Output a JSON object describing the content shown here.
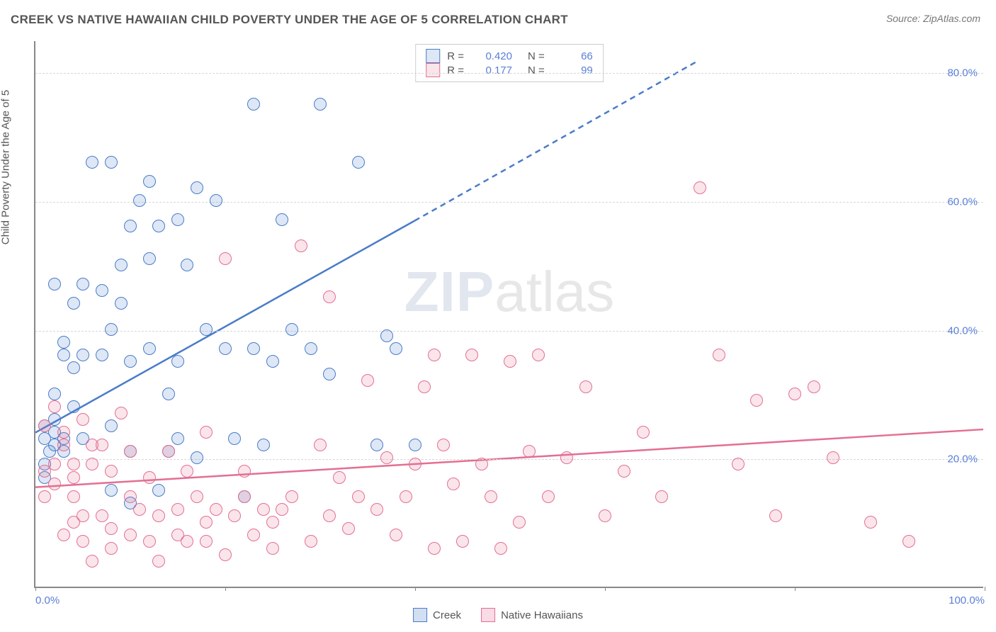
{
  "title": "CREEK VS NATIVE HAWAIIAN CHILD POVERTY UNDER THE AGE OF 5 CORRELATION CHART",
  "source": "Source: ZipAtlas.com",
  "y_axis_label": "Child Poverty Under the Age of 5",
  "watermark": {
    "part1": "ZIP",
    "part2": "atlas"
  },
  "chart": {
    "type": "scatter-correlation",
    "background_color": "#ffffff",
    "grid_color": "#d8d8d8",
    "axis_color": "#888888",
    "tick_color": "#5a7fd6",
    "tick_fontsize": 15,
    "xlim": [
      0,
      100
    ],
    "ylim": [
      0,
      85
    ],
    "y_gridlines": [
      20,
      40,
      60,
      80
    ],
    "y_tick_labels": [
      "20.0%",
      "40.0%",
      "60.0%",
      "80.0%"
    ],
    "x_tick_positions": [
      0,
      20,
      40,
      60,
      80,
      100
    ],
    "x_tick_labels_shown": {
      "0": "0.0%",
      "100": "100.0%"
    },
    "marker_radius": 9,
    "marker_border_width": 1.5,
    "marker_fill_opacity": 0.18
  },
  "series": [
    {
      "name": "Creek",
      "color": "#4a7cc9",
      "fill": "rgba(74,124,201,0.18)",
      "R": "0.420",
      "N": "66",
      "trend": {
        "x1": 0,
        "y1": 24,
        "x2_solid": 40,
        "y2_solid": 57,
        "x2_dash": 70,
        "y2_dash": 82,
        "width": 2.5
      },
      "points": [
        [
          1,
          23
        ],
        [
          1,
          25
        ],
        [
          1.5,
          21
        ],
        [
          1,
          19
        ],
        [
          1,
          17
        ],
        [
          2,
          30
        ],
        [
          2,
          22
        ],
        [
          2,
          24
        ],
        [
          2,
          26
        ],
        [
          2,
          47
        ],
        [
          3,
          36
        ],
        [
          3,
          38
        ],
        [
          3,
          21
        ],
        [
          3,
          23
        ],
        [
          4,
          28
        ],
        [
          4,
          34
        ],
        [
          4,
          44
        ],
        [
          5,
          36
        ],
        [
          5,
          47
        ],
        [
          5,
          23
        ],
        [
          6,
          66
        ],
        [
          7,
          46
        ],
        [
          7,
          36
        ],
        [
          8,
          25
        ],
        [
          8,
          15
        ],
        [
          8,
          66
        ],
        [
          8,
          40
        ],
        [
          9,
          50
        ],
        [
          9,
          44
        ],
        [
          10,
          13
        ],
        [
          10,
          35
        ],
        [
          10,
          56
        ],
        [
          10,
          21
        ],
        [
          11,
          60
        ],
        [
          12,
          37
        ],
        [
          12,
          51
        ],
        [
          12,
          63
        ],
        [
          13,
          15
        ],
        [
          13,
          56
        ],
        [
          14,
          30
        ],
        [
          14,
          21
        ],
        [
          15,
          35
        ],
        [
          15,
          23
        ],
        [
          15,
          57
        ],
        [
          16,
          50
        ],
        [
          17,
          20
        ],
        [
          17,
          62
        ],
        [
          18,
          40
        ],
        [
          19,
          60
        ],
        [
          20,
          37
        ],
        [
          21,
          23
        ],
        [
          22,
          14
        ],
        [
          23,
          37
        ],
        [
          23,
          75
        ],
        [
          24,
          22
        ],
        [
          25,
          35
        ],
        [
          26,
          57
        ],
        [
          27,
          40
        ],
        [
          29,
          37
        ],
        [
          30,
          75
        ],
        [
          31,
          33
        ],
        [
          34,
          66
        ],
        [
          36,
          22
        ],
        [
          37,
          39
        ],
        [
          38,
          37
        ],
        [
          40,
          22
        ]
      ]
    },
    {
      "name": "Native Hawaiians",
      "color": "#e36f92",
      "fill": "rgba(227,111,146,0.18)",
      "R": "0.177",
      "N": "99",
      "trend": {
        "x1": 0,
        "y1": 15.5,
        "x2_solid": 100,
        "y2_solid": 24.5,
        "width": 2.5
      },
      "points": [
        [
          1,
          14
        ],
        [
          1,
          18
        ],
        [
          1,
          25
        ],
        [
          2,
          16
        ],
        [
          2,
          19
        ],
        [
          2,
          28
        ],
        [
          3,
          8
        ],
        [
          3,
          24
        ],
        [
          3,
          22
        ],
        [
          4,
          10
        ],
        [
          4,
          14
        ],
        [
          4,
          17
        ],
        [
          4,
          19
        ],
        [
          5,
          7
        ],
        [
          5,
          11
        ],
        [
          5,
          26
        ],
        [
          6,
          4
        ],
        [
          6,
          19
        ],
        [
          6,
          22
        ],
        [
          7,
          11
        ],
        [
          7,
          22
        ],
        [
          8,
          6
        ],
        [
          8,
          9
        ],
        [
          8,
          18
        ],
        [
          9,
          27
        ],
        [
          10,
          8
        ],
        [
          10,
          14
        ],
        [
          10,
          21
        ],
        [
          11,
          12
        ],
        [
          12,
          7
        ],
        [
          12,
          17
        ],
        [
          13,
          4
        ],
        [
          13,
          11
        ],
        [
          14,
          21
        ],
        [
          15,
          8
        ],
        [
          15,
          12
        ],
        [
          16,
          7
        ],
        [
          16,
          18
        ],
        [
          17,
          14
        ],
        [
          18,
          7
        ],
        [
          18,
          10
        ],
        [
          18,
          24
        ],
        [
          19,
          12
        ],
        [
          20,
          5
        ],
        [
          20,
          51
        ],
        [
          21,
          11
        ],
        [
          22,
          18
        ],
        [
          22,
          14
        ],
        [
          23,
          8
        ],
        [
          24,
          12
        ],
        [
          25,
          6
        ],
        [
          25,
          10
        ],
        [
          26,
          12
        ],
        [
          27,
          14
        ],
        [
          28,
          53
        ],
        [
          29,
          7
        ],
        [
          30,
          22
        ],
        [
          31,
          11
        ],
        [
          31,
          45
        ],
        [
          32,
          17
        ],
        [
          33,
          9
        ],
        [
          34,
          14
        ],
        [
          35,
          32
        ],
        [
          36,
          12
        ],
        [
          37,
          20
        ],
        [
          38,
          8
        ],
        [
          39,
          14
        ],
        [
          40,
          19
        ],
        [
          41,
          31
        ],
        [
          42,
          6
        ],
        [
          42,
          36
        ],
        [
          43,
          22
        ],
        [
          44,
          16
        ],
        [
          45,
          7
        ],
        [
          46,
          36
        ],
        [
          47,
          19
        ],
        [
          48,
          14
        ],
        [
          49,
          6
        ],
        [
          50,
          35
        ],
        [
          51,
          10
        ],
        [
          52,
          21
        ],
        [
          53,
          36
        ],
        [
          54,
          14
        ],
        [
          56,
          20
        ],
        [
          58,
          31
        ],
        [
          60,
          11
        ],
        [
          62,
          18
        ],
        [
          64,
          24
        ],
        [
          66,
          14
        ],
        [
          70,
          62
        ],
        [
          72,
          36
        ],
        [
          74,
          19
        ],
        [
          76,
          29
        ],
        [
          78,
          11
        ],
        [
          80,
          30
        ],
        [
          82,
          31
        ],
        [
          84,
          20
        ],
        [
          88,
          10
        ],
        [
          92,
          7
        ]
      ]
    }
  ],
  "legend_bottom": [
    {
      "label": "Creek",
      "color": "#4a7cc9",
      "fill": "rgba(74,124,201,0.25)"
    },
    {
      "label": "Native Hawaiians",
      "color": "#e36f92",
      "fill": "rgba(227,111,146,0.25)"
    }
  ]
}
